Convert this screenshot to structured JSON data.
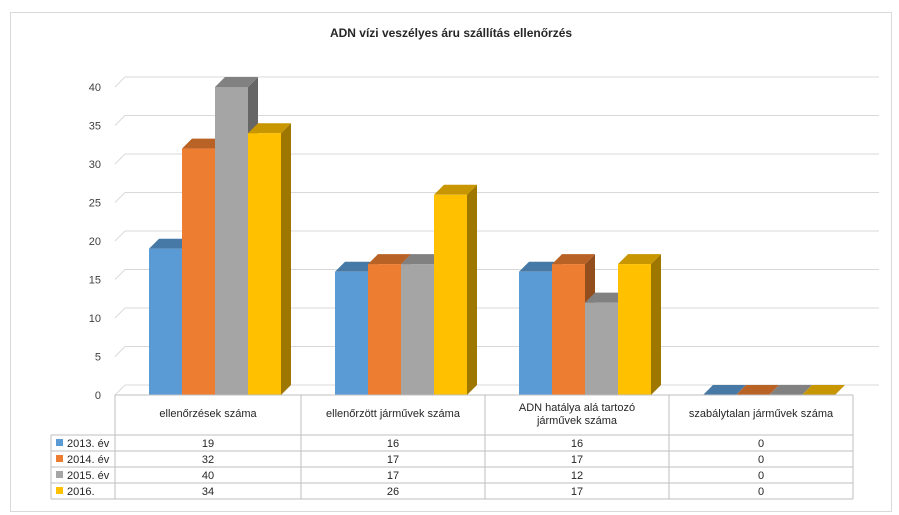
{
  "chart_data": {
    "type": "bar",
    "title": "ADN vízi veszélyes áru szállítás ellenőrzés",
    "categories": [
      "ellenőrzések száma",
      "ellenőrzött járművek száma",
      "ADN hatálya alá tartozó járművek száma",
      "szabálytalan járművek száma"
    ],
    "category_lines": [
      [
        "ellenőrzések száma"
      ],
      [
        "ellenőrzött járművek száma"
      ],
      [
        "ADN hatálya alá tartozó",
        "járművek száma"
      ],
      [
        "szabálytalan járművek száma"
      ]
    ],
    "series": [
      {
        "name": "2013. év",
        "values": [
          19,
          16,
          16,
          0
        ],
        "color": "#5B9BD5"
      },
      {
        "name": "2014. év",
        "values": [
          32,
          17,
          17,
          0
        ],
        "color": "#ED7D31"
      },
      {
        "name": "2015. év",
        "values": [
          40,
          17,
          12,
          0
        ],
        "color": "#A5A5A5"
      },
      {
        "name": "2016.",
        "values": [
          34,
          26,
          17,
          0
        ],
        "color": "#FFC000"
      }
    ],
    "ylim": [
      0,
      40
    ],
    "yticks": [
      0,
      5,
      10,
      15,
      20,
      25,
      30,
      35,
      40
    ],
    "grid": true,
    "legend": "data-table-bottom"
  }
}
